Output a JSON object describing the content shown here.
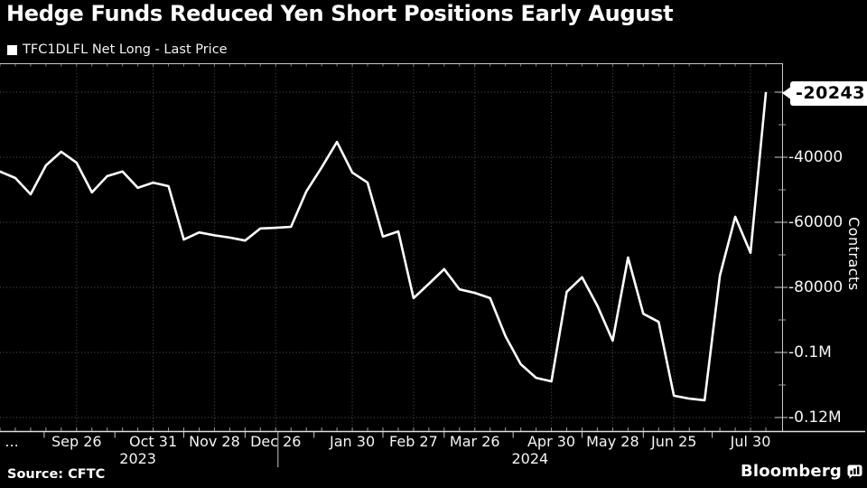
{
  "title": "Hedge Funds Reduced Yen Short Positions Early August",
  "legend": {
    "label": "TFC1DLFL Net Long - Last Price",
    "marker_color": "#ffffff"
  },
  "source": "Source: CFTC",
  "branding": {
    "wordmark": "Bloomberg",
    "icon": "bloomberg-terminal-icon"
  },
  "chart_data": {
    "type": "line",
    "series_name": "TFC1DLFL Net Long - Last Price",
    "title": "Hedge Funds Reduced Yen Short Positions Early August",
    "ylabel": "Contracts",
    "unit": "contracts",
    "line_color": "#ffffff",
    "background_color": "#000000",
    "grid": "dotted",
    "legend_position": "top-left",
    "ylim": [
      -124000,
      -11000
    ],
    "y_ticks": [
      {
        "label": "",
        "value": -20000
      },
      {
        "label": "-40000",
        "value": -40000
      },
      {
        "label": "-60000",
        "value": -60000
      },
      {
        "label": "-80000",
        "value": -80000
      },
      {
        "label": "-0.1M",
        "value": -100000
      },
      {
        "label": "-0.12M",
        "value": -120000
      }
    ],
    "y_minor_ticks": [
      -30000,
      -50000,
      -70000,
      -90000,
      -110000
    ],
    "x_ticks": [
      {
        "label": "...",
        "i": 0.77,
        "grid": false
      },
      {
        "label": "Sep 26",
        "i": 5
      },
      {
        "label": "Oct 31",
        "i": 10
      },
      {
        "label": "Nov 28",
        "i": 14
      },
      {
        "label": "Dec 26",
        "i": 18
      },
      {
        "label": "Jan 30",
        "i": 23
      },
      {
        "label": "Feb 27",
        "i": 27
      },
      {
        "label": "Mar 26",
        "i": 31
      },
      {
        "label": "Apr 30",
        "i": 36
      },
      {
        "label": "May 28",
        "i": 40
      },
      {
        "label": "Jun 25",
        "i": 44
      },
      {
        "label": "Jul 30",
        "i": 49
      }
    ],
    "years": [
      {
        "label": "2023",
        "i": 9
      },
      {
        "label": "2024",
        "i": 34.6
      }
    ],
    "year_separator_i": 18.15,
    "dates": [
      "2023-08-22",
      "2023-08-29",
      "2023-09-05",
      "2023-09-12",
      "2023-09-19",
      "2023-09-26",
      "2023-10-03",
      "2023-10-10",
      "2023-10-17",
      "2023-10-24",
      "2023-10-31",
      "2023-11-07",
      "2023-11-14",
      "2023-11-21",
      "2023-11-28",
      "2023-12-05",
      "2023-12-12",
      "2023-12-19",
      "2023-12-26",
      "2024-01-02",
      "2024-01-09",
      "2024-01-16",
      "2024-01-23",
      "2024-01-30",
      "2024-02-06",
      "2024-02-13",
      "2024-02-20",
      "2024-02-27",
      "2024-03-05",
      "2024-03-12",
      "2024-03-19",
      "2024-03-26",
      "2024-04-02",
      "2024-04-09",
      "2024-04-16",
      "2024-04-23",
      "2024-04-30",
      "2024-05-07",
      "2024-05-14",
      "2024-05-21",
      "2024-05-28",
      "2024-06-04",
      "2024-06-11",
      "2024-06-18",
      "2024-06-25",
      "2024-07-02",
      "2024-07-09",
      "2024-07-16",
      "2024-07-23",
      "2024-07-30",
      "2024-08-06"
    ],
    "values": [
      -44400,
      -46400,
      -51400,
      -42500,
      -38300,
      -41700,
      -50800,
      -45800,
      -44400,
      -49400,
      -47800,
      -48900,
      -65300,
      -63100,
      -64000,
      -64700,
      -65600,
      -61900,
      -61700,
      -61400,
      -50500,
      -43100,
      -35300,
      -44700,
      -47800,
      -64400,
      -62800,
      -83300,
      -78900,
      -74400,
      -80600,
      -81700,
      -83300,
      -95000,
      -103600,
      -107800,
      -108900,
      -81400,
      -76900,
      -85600,
      -96400,
      -70800,
      -88100,
      -90600,
      -113300,
      -114200,
      -114700,
      -76400,
      -58300,
      -69400,
      -20243
    ],
    "last_price": -20243,
    "last_price_label": "-20243"
  }
}
